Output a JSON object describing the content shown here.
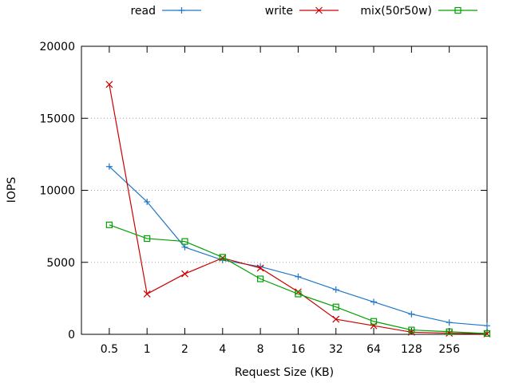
{
  "chart_data": {
    "type": "line",
    "title": "",
    "xlabel": "Request Size (KB)",
    "ylabel": "IOPS",
    "x_scale": "log2",
    "categories": [
      "0.5",
      "1",
      "2",
      "4",
      "8",
      "16",
      "32",
      "64",
      "128",
      "256"
    ],
    "x": [
      0.5,
      1,
      2,
      4,
      8,
      16,
      32,
      64,
      128,
      256,
      512
    ],
    "xlim": [
      0.3,
      512
    ],
    "ylim": [
      0,
      20000
    ],
    "yticks": [
      "0",
      "5000",
      "10000",
      "15000",
      "20000"
    ],
    "ytick_values": [
      0,
      5000,
      10000,
      15000,
      20000
    ],
    "grid": "horizontal dotted",
    "legend_position": "top",
    "series": [
      {
        "name": "read",
        "color": "#1f77c8",
        "marker": "plus",
        "values": [
          11650,
          9200,
          6050,
          5150,
          4700,
          4000,
          3100,
          2250,
          1400,
          820,
          600
        ]
      },
      {
        "name": "write",
        "color": "#cc0000",
        "marker": "x",
        "values": [
          17350,
          2800,
          4200,
          5300,
          4600,
          2950,
          1050,
          600,
          150,
          80,
          30
        ]
      },
      {
        "name": "mix(50r50w)",
        "color": "#00a000",
        "marker": "square",
        "values": [
          7600,
          6650,
          6450,
          5350,
          3850,
          2800,
          1900,
          900,
          300,
          180,
          60
        ]
      }
    ]
  }
}
